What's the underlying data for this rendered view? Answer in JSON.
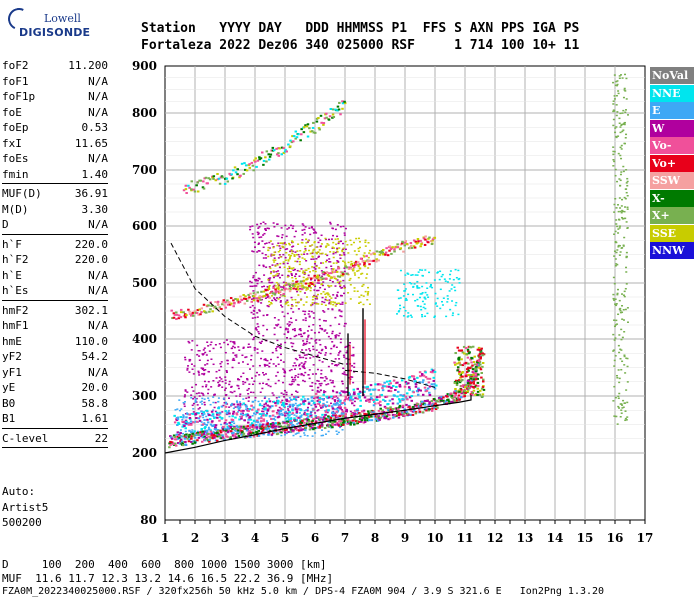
{
  "logo": {
    "line1": "Lowell",
    "line2": "DIGISONDE"
  },
  "header": {
    "row1": "Station   YYYY DAY   DDD HHMMSS P1  FFS S AXN PPS IGA PS",
    "row2": "Fortaleza 2022 Dez06 340 025000 RSF     1 714 100 10+ 11"
  },
  "params": {
    "group1": [
      {
        "label": "foF2",
        "value": "11.200"
      },
      {
        "label": "foF1",
        "value": "N/A"
      },
      {
        "label": "foF1p",
        "value": "N/A"
      },
      {
        "label": "foE",
        "value": "N/A"
      },
      {
        "label": "foEp",
        "value": "0.53"
      },
      {
        "label": "fxI",
        "value": "11.65"
      },
      {
        "label": "foEs",
        "value": "N/A"
      },
      {
        "label": "fmin",
        "value": "1.40"
      }
    ],
    "group2": [
      {
        "label": "MUF(D)",
        "value": "36.91"
      },
      {
        "label": "M(D)",
        "value": "3.30"
      },
      {
        "label": "D",
        "value": "N/A"
      }
    ],
    "group3": [
      {
        "label": "h`F",
        "value": "220.0"
      },
      {
        "label": "h`F2",
        "value": "220.0"
      },
      {
        "label": "h`E",
        "value": "N/A"
      },
      {
        "label": "h`Es",
        "value": "N/A"
      }
    ],
    "group4": [
      {
        "label": "hmF2",
        "value": "302.1"
      },
      {
        "label": "hmF1",
        "value": "N/A"
      },
      {
        "label": "hmE",
        "value": "110.0"
      },
      {
        "label": "yF2",
        "value": "54.2"
      },
      {
        "label": "yF1",
        "value": "N/A"
      },
      {
        "label": "yE",
        "value": "20.0"
      },
      {
        "label": "B0",
        "value": "58.8"
      },
      {
        "label": "B1",
        "value": "1.61"
      }
    ],
    "group5": [
      {
        "label": "C-level",
        "value": "22"
      }
    ]
  },
  "auto": {
    "line1": "Auto:",
    "line2": "Artist5",
    "line3": "500200"
  },
  "legend": [
    {
      "label": "NoVal",
      "color": "#808080"
    },
    {
      "label": "NNE",
      "color": "#00e5ee"
    },
    {
      "label": "E",
      "color": "#3ea8f5"
    },
    {
      "label": "W",
      "color": "#b0009e"
    },
    {
      "label": "Vo-",
      "color": "#f0509a"
    },
    {
      "label": "Vo+",
      "color": "#e8001a"
    },
    {
      "label": "SSW",
      "color": "#f5a0a0"
    },
    {
      "label": "X-",
      "color": "#007a00"
    },
    {
      "label": "X+",
      "color": "#78b050"
    },
    {
      "label": "SSE",
      "color": "#c8cc00"
    },
    {
      "label": "NNW",
      "color": "#1a10d8"
    }
  ],
  "bottom": {
    "row1": "D     100  200  400  600  800 1000 1500 3000 [km]",
    "row2": "MUF  11.6 11.7 12.3 13.2 14.6 16.5 22.2 36.9 [MHz]"
  },
  "footer": "FZA0M_2022340025000.RSF / 320fx256h 50 kHz 5.0 km / DPS-4 FZA0M 904 / 3.9 S 321.6 E   Ion2Png 1.3.20",
  "chart_data": {
    "type": "scatter",
    "x_ticks": [
      "1",
      "2",
      "3",
      "4",
      "5",
      "6",
      "7",
      "8",
      "9",
      "10",
      "11",
      "12",
      "13",
      "14",
      "15",
      "16",
      "17"
    ],
    "y_ticks": [
      "80",
      "200",
      "300",
      "400",
      "500",
      "600",
      "700",
      "800",
      "900"
    ],
    "xlim": [
      1,
      17
    ],
    "ylim": [
      80,
      900
    ],
    "grid": true,
    "legend_position": "right",
    "profile_curve": [
      [
        1.0,
        200
      ],
      [
        2,
        210
      ],
      [
        3,
        222
      ],
      [
        4,
        232
      ],
      [
        5,
        243
      ],
      [
        6,
        252
      ],
      [
        7,
        261
      ],
      [
        8,
        268
      ],
      [
        9,
        275
      ],
      [
        10,
        283
      ],
      [
        10.8,
        289
      ],
      [
        11.2,
        293
      ],
      [
        11.2,
        302
      ]
    ],
    "trace_lower": [
      [
        1.1,
        222
      ],
      [
        2,
        228
      ],
      [
        3,
        235
      ],
      [
        4,
        241
      ],
      [
        5,
        247
      ],
      [
        6,
        254
      ],
      [
        7,
        260
      ],
      [
        8,
        268
      ],
      [
        9,
        276
      ],
      [
        10,
        288
      ],
      [
        10.6,
        300
      ],
      [
        11.0,
        315
      ],
      [
        11.3,
        340
      ],
      [
        11.5,
        375
      ]
    ],
    "trace_upper": [
      [
        1.3,
        245
      ],
      [
        2,
        252
      ],
      [
        3,
        262
      ],
      [
        4,
        270
      ],
      [
        5,
        275
      ],
      [
        6,
        283
      ],
      [
        7,
        290
      ],
      [
        8,
        300
      ],
      [
        9,
        312
      ],
      [
        10,
        330
      ]
    ],
    "oblique_trace": [
      [
        1.2,
        445
      ],
      [
        2,
        452
      ],
      [
        3,
        465
      ],
      [
        4,
        478
      ],
      [
        5,
        490
      ],
      [
        6,
        508
      ],
      [
        7,
        525
      ],
      [
        8,
        548
      ],
      [
        9,
        568
      ],
      [
        10,
        580
      ]
    ],
    "oblique_trace_high": [
      [
        1.6,
        665
      ],
      [
        3,
        690
      ],
      [
        4,
        715
      ],
      [
        5,
        745
      ],
      [
        6,
        780
      ],
      [
        7,
        820
      ]
    ],
    "dashed_curve_1": [
      [
        1.2,
        570
      ],
      [
        2,
        490
      ],
      [
        3,
        440
      ],
      [
        4,
        405
      ],
      [
        5,
        385
      ],
      [
        6,
        370
      ],
      [
        7,
        355
      ]
    ],
    "dashed_curve_2": [
      [
        7,
        345
      ],
      [
        8,
        340
      ],
      [
        9,
        330
      ],
      [
        10,
        315
      ]
    ],
    "vertical_traces": [
      [
        7.6,
        300,
        455
      ],
      [
        7.1,
        300,
        410
      ]
    ],
    "diffuse_regions": [
      {
        "x0": 1.6,
        "x1": 7.3,
        "y0": 270,
        "y1": 400,
        "color": "W"
      },
      {
        "x0": 1.3,
        "x1": 7.0,
        "y0": 230,
        "y1": 300,
        "color": "E"
      },
      {
        "x0": 3.8,
        "x1": 7.0,
        "y0": 400,
        "y1": 610,
        "color": "W"
      },
      {
        "x0": 4.4,
        "x1": 7.8,
        "y0": 460,
        "y1": 580,
        "color": "SSE"
      },
      {
        "x0": 8.7,
        "x1": 10.8,
        "y0": 440,
        "y1": 525,
        "color": "NNE"
      },
      {
        "x0": 15.9,
        "x1": 16.4,
        "y0": 250,
        "y1": 890,
        "color": "X+"
      }
    ]
  }
}
